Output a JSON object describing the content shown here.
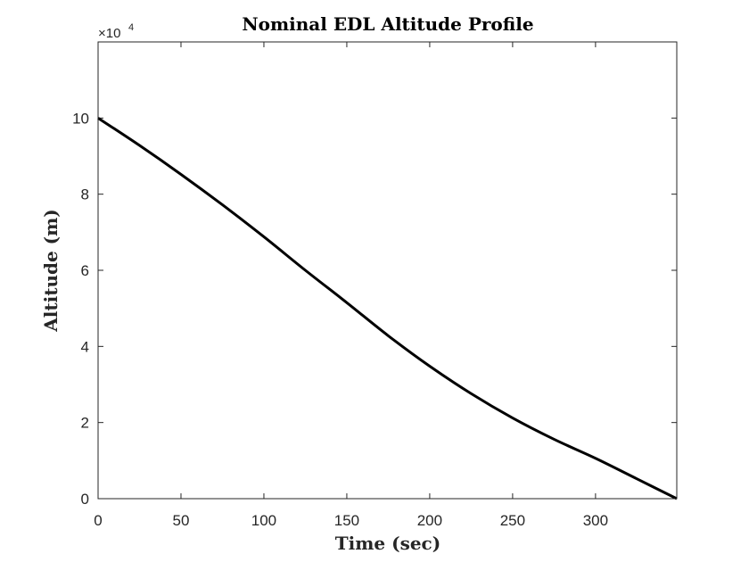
{
  "chart_data": {
    "type": "line",
    "title": "Nominal EDL Altitude Profile",
    "xlabel": "Time (sec)",
    "ylabel": "Altitude (m)",
    "y_exponent_label": {
      "base": "×10",
      "power": "4"
    },
    "xlim": [
      0,
      349
    ],
    "ylim": [
      0,
      120000
    ],
    "xticks": [
      0,
      50,
      100,
      150,
      200,
      250,
      300
    ],
    "yticks": [
      0,
      20000,
      40000,
      60000,
      80000,
      100000
    ],
    "ytick_labels": [
      "0",
      "2",
      "4",
      "6",
      "8",
      "10"
    ],
    "grid": false,
    "series": [
      {
        "color": "#000000",
        "x": [
          0,
          25,
          50,
          75,
          100,
          125,
          150,
          175,
          200,
          225,
          250,
          275,
          300,
          325,
          349
        ],
        "y": [
          100000,
          92800,
          85200,
          77200,
          68800,
          60000,
          51500,
          42800,
          34800,
          27600,
          21200,
          15600,
          10600,
          5200,
          0
        ]
      }
    ]
  }
}
